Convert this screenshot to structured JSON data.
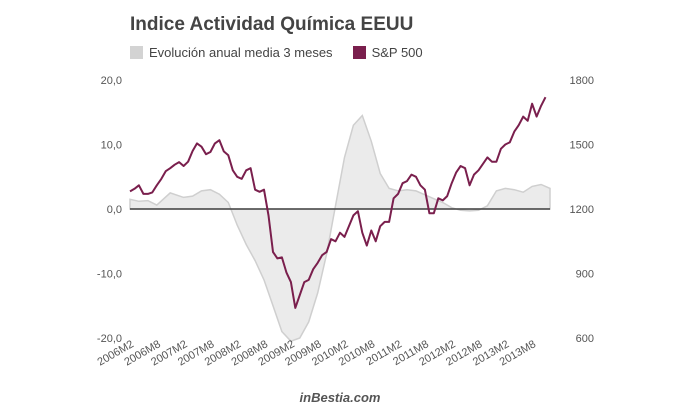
{
  "chart_data": {
    "type": "line",
    "title": "Indice Actividad Química EEUU",
    "legend_position": "top-left",
    "grid": false,
    "series": [
      {
        "name": "Evolución anual media 3 meses",
        "kind": "area",
        "axis": "left",
        "color": "#d3d3d3",
        "x": [
          "2006-01",
          "2006-03",
          "2006-05",
          "2006-07",
          "2006-10",
          "2007-01",
          "2007-03",
          "2007-05",
          "2007-07",
          "2007-09",
          "2007-11",
          "2008-01",
          "2008-03",
          "2008-05",
          "2008-07",
          "2008-09",
          "2008-11",
          "2009-01",
          "2009-03",
          "2009-05",
          "2009-07",
          "2009-09",
          "2009-11",
          "2010-01",
          "2010-03",
          "2010-05",
          "2010-07",
          "2010-09",
          "2010-11",
          "2011-01",
          "2011-03",
          "2011-05",
          "2011-07",
          "2011-09",
          "2011-11",
          "2012-01",
          "2012-03",
          "2012-05",
          "2012-07",
          "2012-09",
          "2012-11",
          "2013-01",
          "2013-03",
          "2013-05",
          "2013-07",
          "2013-09",
          "2013-11"
        ],
        "values": [
          1.5,
          1.2,
          1.3,
          0.6,
          2.5,
          1.8,
          2.0,
          2.8,
          3.0,
          2.3,
          1.0,
          -2.5,
          -5.5,
          -8.0,
          -11.0,
          -15.0,
          -19.0,
          -20.5,
          -20.0,
          -17.5,
          -13.0,
          -7.0,
          0.5,
          8.0,
          13.0,
          14.5,
          10.5,
          5.5,
          3.2,
          2.8,
          3.0,
          2.8,
          2.2,
          1.6,
          1.0,
          0.2,
          -0.2,
          -0.3,
          -0.2,
          0.5,
          2.8,
          3.2,
          3.0,
          2.6,
          3.5,
          3.8,
          3.2
        ]
      },
      {
        "name": "S&P 500",
        "kind": "line",
        "axis": "right",
        "color": "#7a1f4d",
        "x": [
          "2006-01",
          "2006-02",
          "2006-03",
          "2006-04",
          "2006-05",
          "2006-06",
          "2006-07",
          "2006-08",
          "2006-09",
          "2006-10",
          "2006-11",
          "2006-12",
          "2007-01",
          "2007-02",
          "2007-03",
          "2007-04",
          "2007-05",
          "2007-06",
          "2007-07",
          "2007-08",
          "2007-09",
          "2007-10",
          "2007-11",
          "2007-12",
          "2008-01",
          "2008-02",
          "2008-03",
          "2008-04",
          "2008-05",
          "2008-06",
          "2008-07",
          "2008-08",
          "2008-09",
          "2008-10",
          "2008-11",
          "2008-12",
          "2009-01",
          "2009-02",
          "2009-03",
          "2009-04",
          "2009-05",
          "2009-06",
          "2009-07",
          "2009-08",
          "2009-09",
          "2009-10",
          "2009-11",
          "2009-12",
          "2010-01",
          "2010-02",
          "2010-03",
          "2010-04",
          "2010-05",
          "2010-06",
          "2010-07",
          "2010-08",
          "2010-09",
          "2010-10",
          "2010-11",
          "2010-12",
          "2011-01",
          "2011-02",
          "2011-03",
          "2011-04",
          "2011-05",
          "2011-06",
          "2011-07",
          "2011-08",
          "2011-09",
          "2011-10",
          "2011-11",
          "2011-12",
          "2012-01",
          "2012-02",
          "2012-03",
          "2012-04",
          "2012-05",
          "2012-06",
          "2012-07",
          "2012-08",
          "2012-09",
          "2012-10",
          "2012-11",
          "2012-12",
          "2013-01",
          "2013-02",
          "2013-03",
          "2013-04",
          "2013-05",
          "2013-06",
          "2013-07",
          "2013-08",
          "2013-09",
          "2013-10"
        ],
        "values": [
          1282,
          1294,
          1310,
          1270,
          1270,
          1277,
          1310,
          1340,
          1376,
          1390,
          1406,
          1418,
          1400,
          1420,
          1470,
          1505,
          1490,
          1455,
          1465,
          1505,
          1520,
          1468,
          1450,
          1380,
          1350,
          1340,
          1380,
          1390,
          1290,
          1280,
          1290,
          1170,
          1000,
          970,
          975,
          905,
          860,
          740,
          800,
          860,
          870,
          920,
          950,
          985,
          1000,
          1060,
          1050,
          1090,
          1070,
          1120,
          1170,
          1190,
          1090,
          1030,
          1100,
          1050,
          1120,
          1140,
          1140,
          1250,
          1270,
          1320,
          1330,
          1360,
          1350,
          1310,
          1290,
          1180,
          1180,
          1250,
          1240,
          1260,
          1320,
          1370,
          1400,
          1390,
          1310,
          1360,
          1380,
          1410,
          1440,
          1420,
          1420,
          1480,
          1500,
          1510,
          1560,
          1590,
          1630,
          1610,
          1690,
          1630,
          1680,
          1720
        ]
      }
    ],
    "y_left": {
      "min": -20,
      "max": 20,
      "ticks": [
        "-20,0",
        "-10,0",
        "0,0",
        "10,0",
        "20,0"
      ]
    },
    "y_right": {
      "min": 600,
      "max": 1800,
      "ticks": [
        "600",
        "900",
        "1200",
        "1500",
        "1800"
      ]
    },
    "x_ticks": [
      "2006M2",
      "2006M8",
      "2007M2",
      "2007M8",
      "2008M2",
      "2008M8",
      "2009M2",
      "2009M8",
      "2010M2",
      "2010M8",
      "2011M2",
      "2011M8",
      "2012M2",
      "2012M8",
      "2013M2",
      "2013M8"
    ],
    "x_range": [
      "2006-01",
      "2013-11"
    ]
  },
  "source": "inBestia.com"
}
